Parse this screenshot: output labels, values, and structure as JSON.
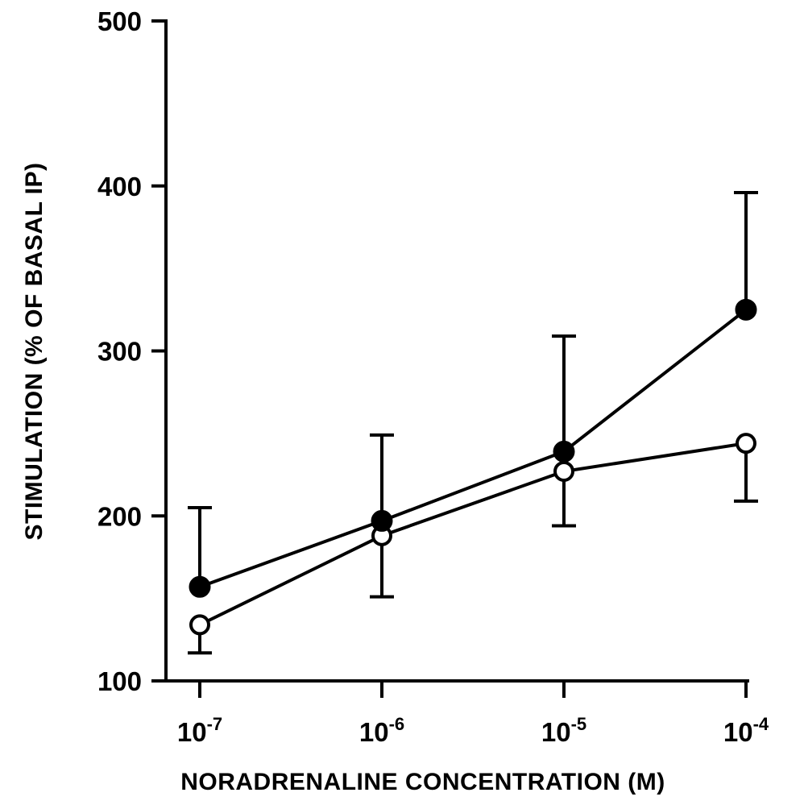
{
  "chart_data": {
    "type": "line",
    "xlabel": "NORADRENALINE CONCENTRATION (M)",
    "ylabel": "STIMULATION (% OF BASAL IP)",
    "x_scale": "log",
    "x": [
      1e-07,
      1e-06,
      1e-05,
      0.0001
    ],
    "x_tick_labels": [
      {
        "base": "10",
        "exp": "-7"
      },
      {
        "base": "10",
        "exp": "-6"
      },
      {
        "base": "10",
        "exp": "-5"
      },
      {
        "base": "10",
        "exp": "-4"
      }
    ],
    "ylim": [
      100,
      500
    ],
    "y_ticks": [
      100,
      200,
      300,
      400,
      500
    ],
    "y_tick_labels": [
      "100",
      "200",
      "300",
      "400",
      "500"
    ],
    "grid": false,
    "series": [
      {
        "marker": "filled-circle",
        "values": [
          157,
          197,
          239,
          325
        ],
        "error_bars": [
          {
            "x": 1e-07,
            "upper": 205,
            "lower": null
          },
          {
            "x": 1e-06,
            "upper": 249,
            "lower": null
          },
          {
            "x": 1e-05,
            "upper": 309,
            "lower": null
          },
          {
            "x": 0.0001,
            "upper": 396,
            "lower": null
          }
        ]
      },
      {
        "marker": "open-circle",
        "values": [
          134,
          188,
          227,
          244
        ],
        "error_bars": [
          {
            "x": 1e-07,
            "upper": null,
            "lower": 117
          },
          {
            "x": 1e-06,
            "upper": null,
            "lower": 151
          },
          {
            "x": 1e-05,
            "upper": null,
            "lower": 194
          },
          {
            "x": 0.0001,
            "upper": null,
            "lower": 209
          }
        ]
      }
    ]
  }
}
